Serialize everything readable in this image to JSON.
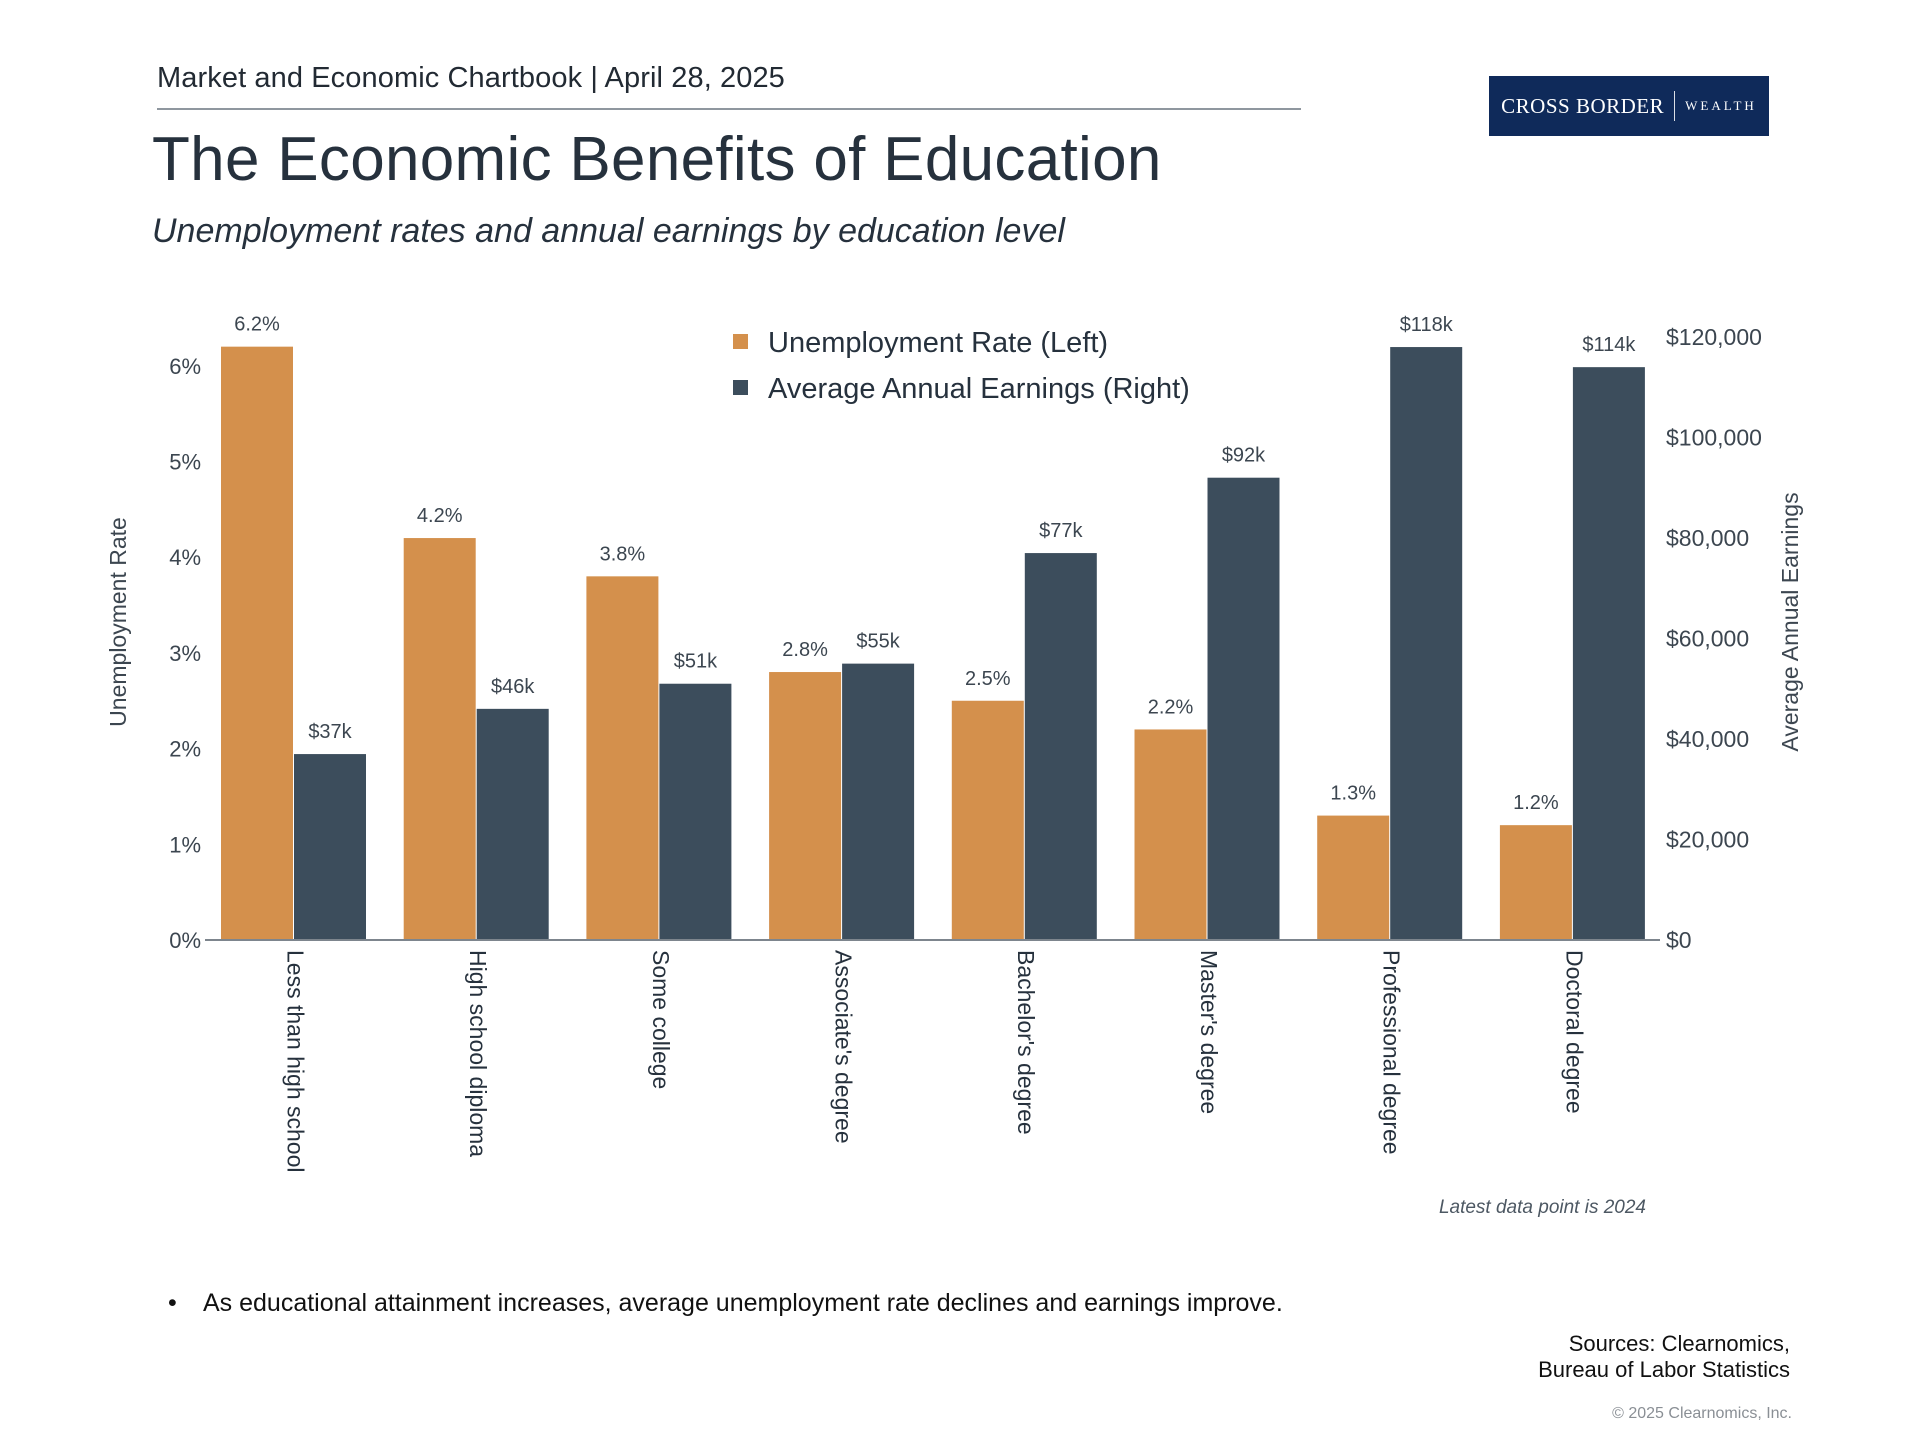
{
  "header": {
    "chartbook": "Market and Economic Chartbook | April 28, 2025"
  },
  "logo": {
    "brand": "CROSS BORDER",
    "tagline": "WEALTH"
  },
  "page": {
    "title": "The Economic Benefits of Education",
    "subtitle": "Unemployment rates and annual earnings by education level"
  },
  "colors": {
    "unemployment": "#d4904c",
    "earnings": "#3c4d5c",
    "axis_text": "#3c4650"
  },
  "chart_data": {
    "type": "bar",
    "categories": [
      "Less than high school",
      "High school diploma",
      "Some college",
      "Associate's degree",
      "Bachelor's degree",
      "Master's degree",
      "Professional degree",
      "Doctoral degree"
    ],
    "series": [
      {
        "name": "Unemployment Rate (Left)",
        "axis": "left",
        "values": [
          6.2,
          4.2,
          3.8,
          2.8,
          2.5,
          2.2,
          1.3,
          1.2
        ],
        "labels": [
          "6.2%",
          "4.2%",
          "3.8%",
          "2.8%",
          "2.5%",
          "2.2%",
          "1.3%",
          "1.2%"
        ],
        "color": "#d4904c"
      },
      {
        "name": "Average Annual Earnings (Right)",
        "axis": "right",
        "values": [
          37000,
          46000,
          51000,
          55000,
          77000,
          92000,
          118000,
          114000
        ],
        "labels": [
          "$37k",
          "$46k",
          "$51k",
          "$55k",
          "$77k",
          "$92k",
          "$118k",
          "$114k"
        ],
        "color": "#3c4d5c"
      }
    ],
    "ylabel_left": "Unemployment Rate",
    "ylabel_right": "Average Annual Earnings",
    "ylim_left": [
      0,
      6.2
    ],
    "ylim_right": [
      0,
      118000
    ],
    "yticks_left": [
      0,
      1,
      2,
      3,
      4,
      5,
      6
    ],
    "ytick_labels_left": [
      "0%",
      "1%",
      "2%",
      "3%",
      "4%",
      "5%",
      "6%"
    ],
    "yticks_right": [
      0,
      20000,
      40000,
      60000,
      80000,
      100000,
      120000
    ],
    "ytick_labels_right": [
      "$0",
      "$20,000",
      "$40,000",
      "$60,000",
      "$80,000",
      "$100,000",
      "$120,000"
    ],
    "legend_position": "top-center",
    "grid": false,
    "note": "Latest data point is 2024"
  },
  "footer": {
    "bullet": "As educational attainment increases, average unemployment rate declines and earnings improve.",
    "sources_line1": "Sources: Clearnomics,",
    "sources_line2": "Bureau of Labor Statistics",
    "copyright": "© 2025 Clearnomics, Inc."
  }
}
